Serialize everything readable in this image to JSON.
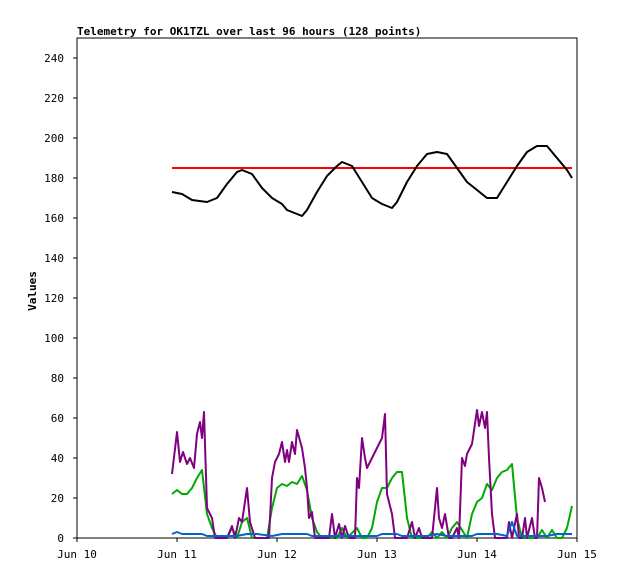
{
  "chart_data": {
    "type": "line",
    "title": "Telemetry for OK1TZL over last 96 hours (128 points)",
    "ylabel": "Values",
    "xlabel": "",
    "x_ticks": [
      "Jun 10",
      "Jun 11",
      "Jun 12",
      "Jun 13",
      "Jun 14",
      "Jun 15"
    ],
    "xlim": [
      "Jun 10",
      "Jun 15"
    ],
    "ylim": [
      0,
      250
    ],
    "y_ticks": [
      0,
      20,
      40,
      60,
      80,
      100,
      120,
      140,
      160,
      180,
      200,
      220,
      240
    ],
    "grid": false,
    "series": [
      {
        "color": "#ff0000",
        "points": [
          [
            10.95,
            185
          ],
          [
            14.95,
            185
          ]
        ]
      },
      {
        "color": "#000000",
        "points": [
          [
            10.95,
            173
          ],
          [
            11.05,
            172
          ],
          [
            11.15,
            169
          ],
          [
            11.3,
            168
          ],
          [
            11.4,
            170
          ],
          [
            11.5,
            177
          ],
          [
            11.6,
            183
          ],
          [
            11.65,
            184
          ],
          [
            11.75,
            182
          ],
          [
            11.85,
            175
          ],
          [
            11.95,
            170
          ],
          [
            12.05,
            167
          ],
          [
            12.1,
            164
          ],
          [
            12.2,
            162
          ],
          [
            12.25,
            161
          ],
          [
            12.3,
            164
          ],
          [
            12.4,
            173
          ],
          [
            12.5,
            181
          ],
          [
            12.6,
            186
          ],
          [
            12.65,
            188
          ],
          [
            12.75,
            186
          ],
          [
            12.85,
            178
          ],
          [
            12.95,
            170
          ],
          [
            13.05,
            167
          ],
          [
            13.15,
            165
          ],
          [
            13.2,
            168
          ],
          [
            13.3,
            178
          ],
          [
            13.4,
            186
          ],
          [
            13.5,
            192
          ],
          [
            13.6,
            193
          ],
          [
            13.7,
            192
          ],
          [
            13.8,
            185
          ],
          [
            13.9,
            178
          ],
          [
            14.0,
            174
          ],
          [
            14.1,
            170
          ],
          [
            14.2,
            170
          ],
          [
            14.3,
            178
          ],
          [
            14.4,
            186
          ],
          [
            14.5,
            193
          ],
          [
            14.6,
            196
          ],
          [
            14.7,
            196
          ],
          [
            14.8,
            190
          ],
          [
            14.9,
            184
          ],
          [
            14.95,
            180
          ]
        ]
      },
      {
        "color": "#00aa00",
        "points": [
          [
            10.95,
            22
          ],
          [
            11.0,
            24
          ],
          [
            11.05,
            22
          ],
          [
            11.1,
            22
          ],
          [
            11.15,
            25
          ],
          [
            11.2,
            30
          ],
          [
            11.25,
            34
          ],
          [
            11.3,
            12
          ],
          [
            11.35,
            5
          ],
          [
            11.4,
            0
          ],
          [
            11.5,
            0
          ],
          [
            11.55,
            5
          ],
          [
            11.6,
            0
          ],
          [
            11.65,
            8
          ],
          [
            11.7,
            10
          ],
          [
            11.75,
            0
          ],
          [
            11.8,
            0
          ],
          [
            11.9,
            0
          ],
          [
            11.95,
            15
          ],
          [
            12.0,
            25
          ],
          [
            12.05,
            27
          ],
          [
            12.1,
            26
          ],
          [
            12.15,
            28
          ],
          [
            12.2,
            27
          ],
          [
            12.25,
            31
          ],
          [
            12.3,
            24
          ],
          [
            12.35,
            10
          ],
          [
            12.4,
            3
          ],
          [
            12.45,
            0
          ],
          [
            12.6,
            0
          ],
          [
            12.65,
            5
          ],
          [
            12.7,
            0
          ],
          [
            12.8,
            5
          ],
          [
            12.85,
            0
          ],
          [
            12.9,
            0
          ],
          [
            12.95,
            5
          ],
          [
            13.0,
            18
          ],
          [
            13.05,
            25
          ],
          [
            13.1,
            25
          ],
          [
            13.15,
            30
          ],
          [
            13.2,
            33
          ],
          [
            13.25,
            33
          ],
          [
            13.3,
            10
          ],
          [
            13.35,
            0
          ],
          [
            13.5,
            0
          ],
          [
            13.55,
            3
          ],
          [
            13.6,
            0
          ],
          [
            13.65,
            3
          ],
          [
            13.7,
            0
          ],
          [
            13.75,
            5
          ],
          [
            13.8,
            8
          ],
          [
            13.85,
            4
          ],
          [
            13.9,
            0
          ],
          [
            13.95,
            12
          ],
          [
            14.0,
            18
          ],
          [
            14.05,
            20
          ],
          [
            14.1,
            27
          ],
          [
            14.15,
            24
          ],
          [
            14.2,
            30
          ],
          [
            14.25,
            33
          ],
          [
            14.3,
            34
          ],
          [
            14.35,
            37
          ],
          [
            14.4,
            10
          ],
          [
            14.45,
            0
          ],
          [
            14.6,
            0
          ],
          [
            14.65,
            4
          ],
          [
            14.7,
            0
          ],
          [
            14.75,
            4
          ],
          [
            14.8,
            0
          ],
          [
            14.85,
            0
          ],
          [
            14.9,
            5
          ],
          [
            14.95,
            16
          ]
        ]
      },
      {
        "color": "#800080",
        "points": [
          [
            10.95,
            32
          ],
          [
            11.0,
            53
          ],
          [
            11.03,
            38
          ],
          [
            11.06,
            43
          ],
          [
            11.1,
            37
          ],
          [
            11.13,
            40
          ],
          [
            11.17,
            35
          ],
          [
            11.2,
            52
          ],
          [
            11.23,
            58
          ],
          [
            11.25,
            50
          ],
          [
            11.27,
            63
          ],
          [
            11.3,
            15
          ],
          [
            11.35,
            10
          ],
          [
            11.38,
            0
          ],
          [
            11.5,
            0
          ],
          [
            11.55,
            6
          ],
          [
            11.58,
            0
          ],
          [
            11.62,
            10
          ],
          [
            11.65,
            8
          ],
          [
            11.7,
            25
          ],
          [
            11.73,
            8
          ],
          [
            11.78,
            0
          ],
          [
            11.92,
            0
          ],
          [
            11.95,
            30
          ],
          [
            11.98,
            38
          ],
          [
            12.02,
            42
          ],
          [
            12.05,
            48
          ],
          [
            12.08,
            38
          ],
          [
            12.1,
            44
          ],
          [
            12.12,
            38
          ],
          [
            12.15,
            48
          ],
          [
            12.18,
            42
          ],
          [
            12.2,
            54
          ],
          [
            12.25,
            45
          ],
          [
            12.28,
            35
          ],
          [
            12.3,
            25
          ],
          [
            12.32,
            10
          ],
          [
            12.35,
            13
          ],
          [
            12.38,
            0
          ],
          [
            12.52,
            0
          ],
          [
            12.55,
            12
          ],
          [
            12.58,
            0
          ],
          [
            12.62,
            7
          ],
          [
            12.65,
            0
          ],
          [
            12.68,
            6
          ],
          [
            12.72,
            0
          ],
          [
            12.78,
            0
          ],
          [
            12.8,
            30
          ],
          [
            12.82,
            25
          ],
          [
            12.85,
            50
          ],
          [
            12.88,
            40
          ],
          [
            12.9,
            35
          ],
          [
            12.95,
            40
          ],
          [
            13.0,
            45
          ],
          [
            13.05,
            50
          ],
          [
            13.08,
            62
          ],
          [
            13.1,
            22
          ],
          [
            13.15,
            12
          ],
          [
            13.18,
            0
          ],
          [
            13.3,
            0
          ],
          [
            13.35,
            8
          ],
          [
            13.38,
            0
          ],
          [
            13.42,
            5
          ],
          [
            13.45,
            0
          ],
          [
            13.55,
            0
          ],
          [
            13.6,
            25
          ],
          [
            13.62,
            10
          ],
          [
            13.65,
            5
          ],
          [
            13.68,
            12
          ],
          [
            13.72,
            0
          ],
          [
            13.75,
            0
          ],
          [
            13.8,
            5
          ],
          [
            13.82,
            0
          ],
          [
            13.85,
            40
          ],
          [
            13.88,
            36
          ],
          [
            13.9,
            42
          ],
          [
            13.95,
            47
          ],
          [
            14.0,
            64
          ],
          [
            14.02,
            56
          ],
          [
            14.05,
            63
          ],
          [
            14.08,
            55
          ],
          [
            14.1,
            63
          ],
          [
            14.12,
            40
          ],
          [
            14.15,
            12
          ],
          [
            14.18,
            0
          ],
          [
            14.3,
            0
          ],
          [
            14.32,
            8
          ],
          [
            14.35,
            0
          ],
          [
            14.4,
            12
          ],
          [
            14.42,
            0
          ],
          [
            14.45,
            0
          ],
          [
            14.48,
            10
          ],
          [
            14.5,
            0
          ],
          [
            14.55,
            10
          ],
          [
            14.58,
            0
          ],
          [
            14.6,
            0
          ],
          [
            14.62,
            30
          ],
          [
            14.65,
            25
          ],
          [
            14.68,
            18
          ]
        ]
      },
      {
        "color": "#0066cc",
        "points": [
          [
            10.95,
            2
          ],
          [
            11.0,
            3
          ],
          [
            11.05,
            2
          ],
          [
            11.25,
            2
          ],
          [
            11.3,
            1
          ],
          [
            11.6,
            1
          ],
          [
            11.7,
            2
          ],
          [
            11.8,
            2
          ],
          [
            11.95,
            1
          ],
          [
            12.05,
            2
          ],
          [
            12.3,
            2
          ],
          [
            12.35,
            1
          ],
          [
            12.6,
            1
          ],
          [
            12.8,
            1
          ],
          [
            13.0,
            1
          ],
          [
            13.05,
            2
          ],
          [
            13.2,
            2
          ],
          [
            13.25,
            1
          ],
          [
            13.5,
            1
          ],
          [
            13.6,
            2
          ],
          [
            13.7,
            1
          ],
          [
            13.95,
            1
          ],
          [
            14.0,
            2
          ],
          [
            14.2,
            2
          ],
          [
            14.3,
            1
          ],
          [
            14.35,
            8
          ],
          [
            14.4,
            1
          ],
          [
            14.6,
            1
          ],
          [
            14.7,
            1
          ],
          [
            14.8,
            2
          ],
          [
            14.95,
            2
          ]
        ]
      }
    ]
  }
}
